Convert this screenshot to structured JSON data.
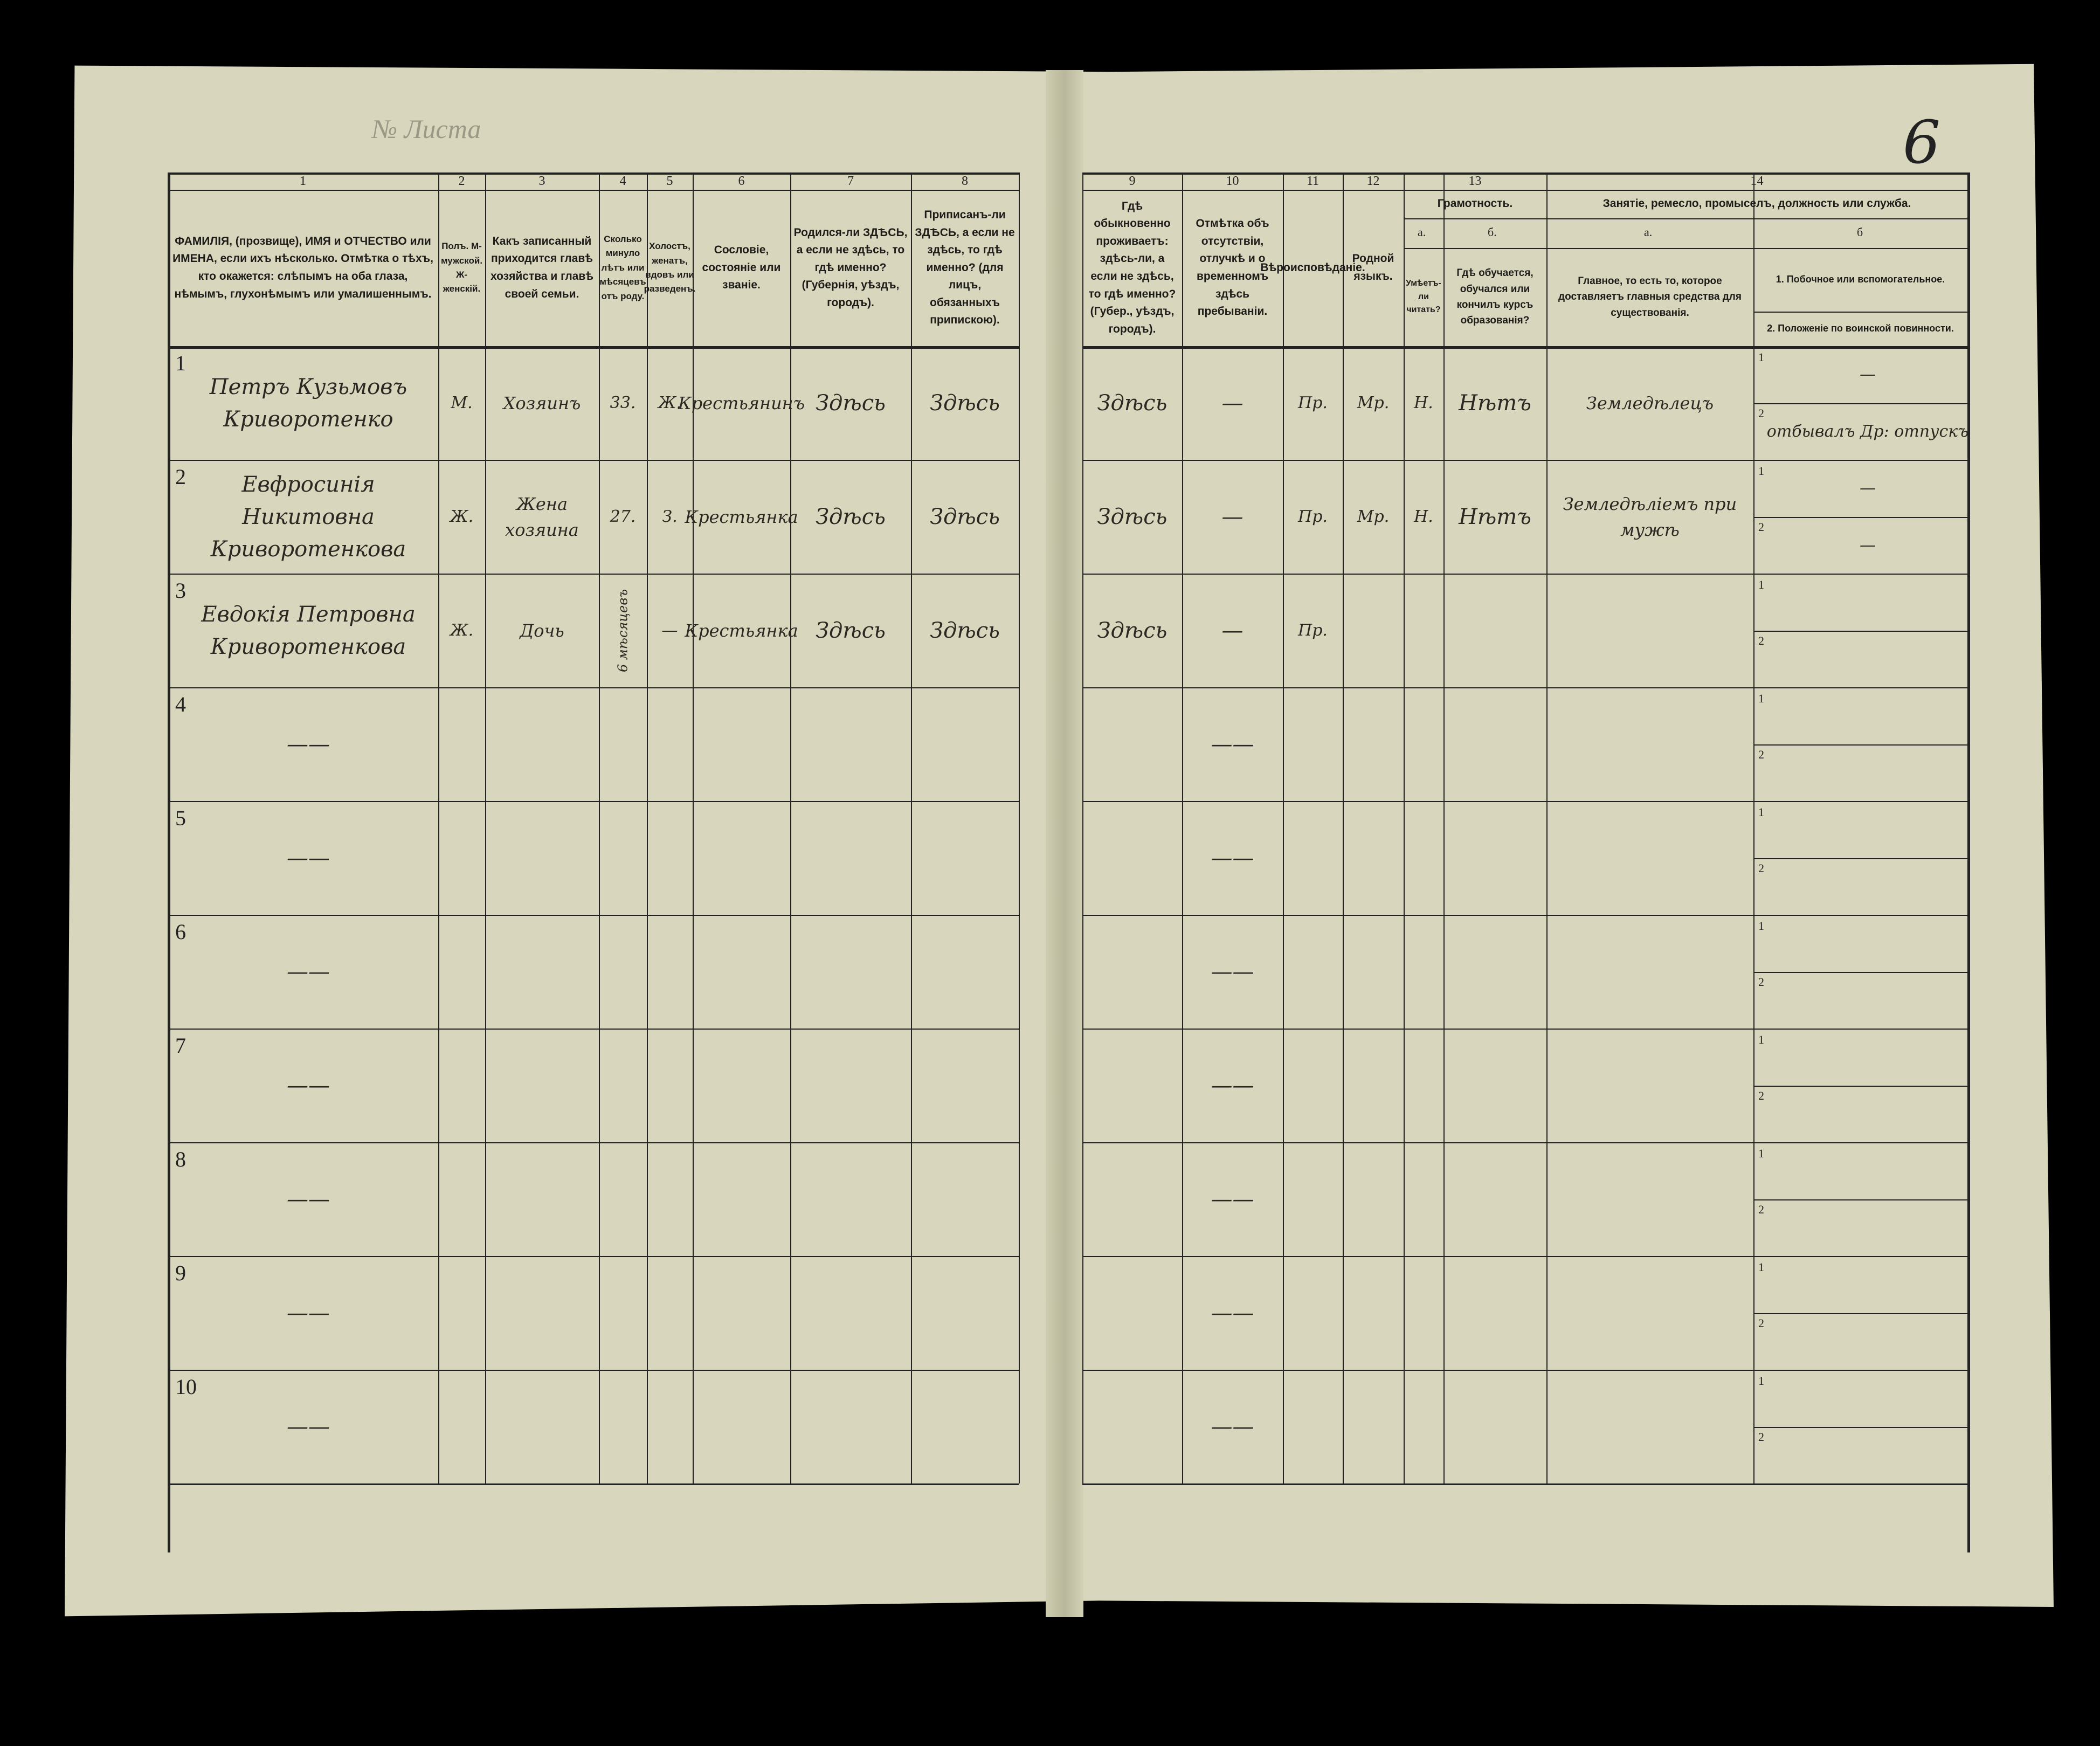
{
  "sheet": {
    "label": "№ Листа",
    "page_number": "6"
  },
  "header": {
    "c1": {
      "num": "1",
      "text": "ФАМИЛІЯ, (прозвище), ИМЯ и ОТЧЕСТВО или ИМЕНА, если ихъ нѣсколько. Отмѣтка о тѣхъ, кто окажется: слѣпымъ на оба глаза, нѣмымъ, глухонѣмымъ или умалишеннымъ."
    },
    "c2": {
      "num": "2",
      "text": "Полъ. М-мужской. Ж-женскій."
    },
    "c3": {
      "num": "3",
      "text": "Какъ записанный приходится главѣ хозяйства и главѣ своей семьи."
    },
    "c4": {
      "num": "4",
      "text": "Сколько минуло лѣтъ или мѣсяцевъ отъ роду."
    },
    "c5": {
      "num": "5",
      "text": "Холостъ, женатъ, вдовъ или разведенъ."
    },
    "c6": {
      "num": "6",
      "text": "Сословіе, состояніе или званіе."
    },
    "c7": {
      "num": "7",
      "text": "Родился-ли ЗДѢСЬ, а если не здѣсь, то гдѣ именно? (Губернія, уѣздъ, городъ)."
    },
    "c8": {
      "num": "8",
      "text": "Приписанъ-ли ЗДѢСЬ, а если не здѣсь, то гдѣ именно? (для лицъ, обязанныхъ припискою)."
    },
    "c9": {
      "num": "9",
      "text": "Гдѣ обыкновенно проживаетъ: здѣсь-ли, а если не здѣсь, то гдѣ именно? (Губер., уѣздъ, городъ)."
    },
    "c10": {
      "num": "10",
      "text": "Отмѣтка объ отсутствіи, отлучкѣ и о временномъ здѣсь пребываніи."
    },
    "c11": {
      "num": "11",
      "text": "Вѣроисповѣданіе."
    },
    "c12": {
      "num": "12",
      "text": "Родной языкъ."
    },
    "c13": {
      "num": "13",
      "group": "Грамотность.",
      "a_label": "а.",
      "a_text": "Умѣетъ-ли читать?",
      "b_label": "б.",
      "b_text": "Гдѣ обучается, обучался или кончилъ курсъ образованія?"
    },
    "c14": {
      "num": "14",
      "group": "Занятіе, ремесло, промыселъ, должность или служба.",
      "a_label": "а.",
      "a_text": "Главное, то есть то, которое доставляетъ главныя средства для существованія.",
      "b_label": "б",
      "b1_text": "1. Побочное или вспомогательное.",
      "b2_text": "2. Положеніе по воинской повинности."
    }
  },
  "sub_labels": {
    "one": "1",
    "two": "2"
  },
  "rows": [
    {
      "n": "1",
      "c1": "Петръ Кузьмовъ Криворотенко",
      "c2": "М.",
      "c3": "Хозяинъ",
      "c4": "33.",
      "c5": "Ж.",
      "c6": "Крестьянинъ",
      "c7": "Здѣсь",
      "c8": "Здѣсь",
      "c9": "Здѣсь",
      "c10": "—",
      "c11": "Пр.",
      "c12": "Мр.",
      "c13a": "Н.",
      "c13b": "Нѣтъ",
      "c14a": "Земледѣлецъ",
      "c14b1": "—",
      "c14b2": "отбывалъ Др: отпускъ"
    },
    {
      "n": "2",
      "c1": "Евфросинія Никитовна Криворотенкова",
      "c2": "Ж.",
      "c3": "Жена хозяина",
      "c4": "27.",
      "c5": "З.",
      "c6": "Крестьянка",
      "c7": "Здѣсь",
      "c8": "Здѣсь",
      "c9": "Здѣсь",
      "c10": "—",
      "c11": "Пр.",
      "c12": "Мр.",
      "c13a": "Н.",
      "c13b": "Нѣтъ",
      "c14a": "Земледѣліемъ при мужѣ",
      "c14b1": "—",
      "c14b2": "—"
    },
    {
      "n": "3",
      "c1": "Евдокія Петровна Криворотенкова",
      "c2": "Ж.",
      "c3": "Дочь",
      "c4": "6 мѣсяцевъ",
      "c5": "—",
      "c6": "Крестьянка",
      "c7": "Здѣсь",
      "c8": "Здѣсь",
      "c9": "Здѣсь",
      "c10": "—",
      "c11": "Пр.",
      "c12": "",
      "c13a": "",
      "c13b": "",
      "c14a": "",
      "c14b1": "",
      "c14b2": ""
    },
    {
      "n": "4",
      "c1": "——",
      "c10": "——"
    },
    {
      "n": "5",
      "c1": "——",
      "c10": "——"
    },
    {
      "n": "6",
      "c1": "——",
      "c10": "——"
    },
    {
      "n": "7",
      "c1": "——",
      "c10": "——"
    },
    {
      "n": "8",
      "c1": "——",
      "c10": "——"
    },
    {
      "n": "9",
      "c1": "——",
      "c10": "——"
    },
    {
      "n": "10",
      "c1": "——",
      "c10": "——"
    }
  ]
}
